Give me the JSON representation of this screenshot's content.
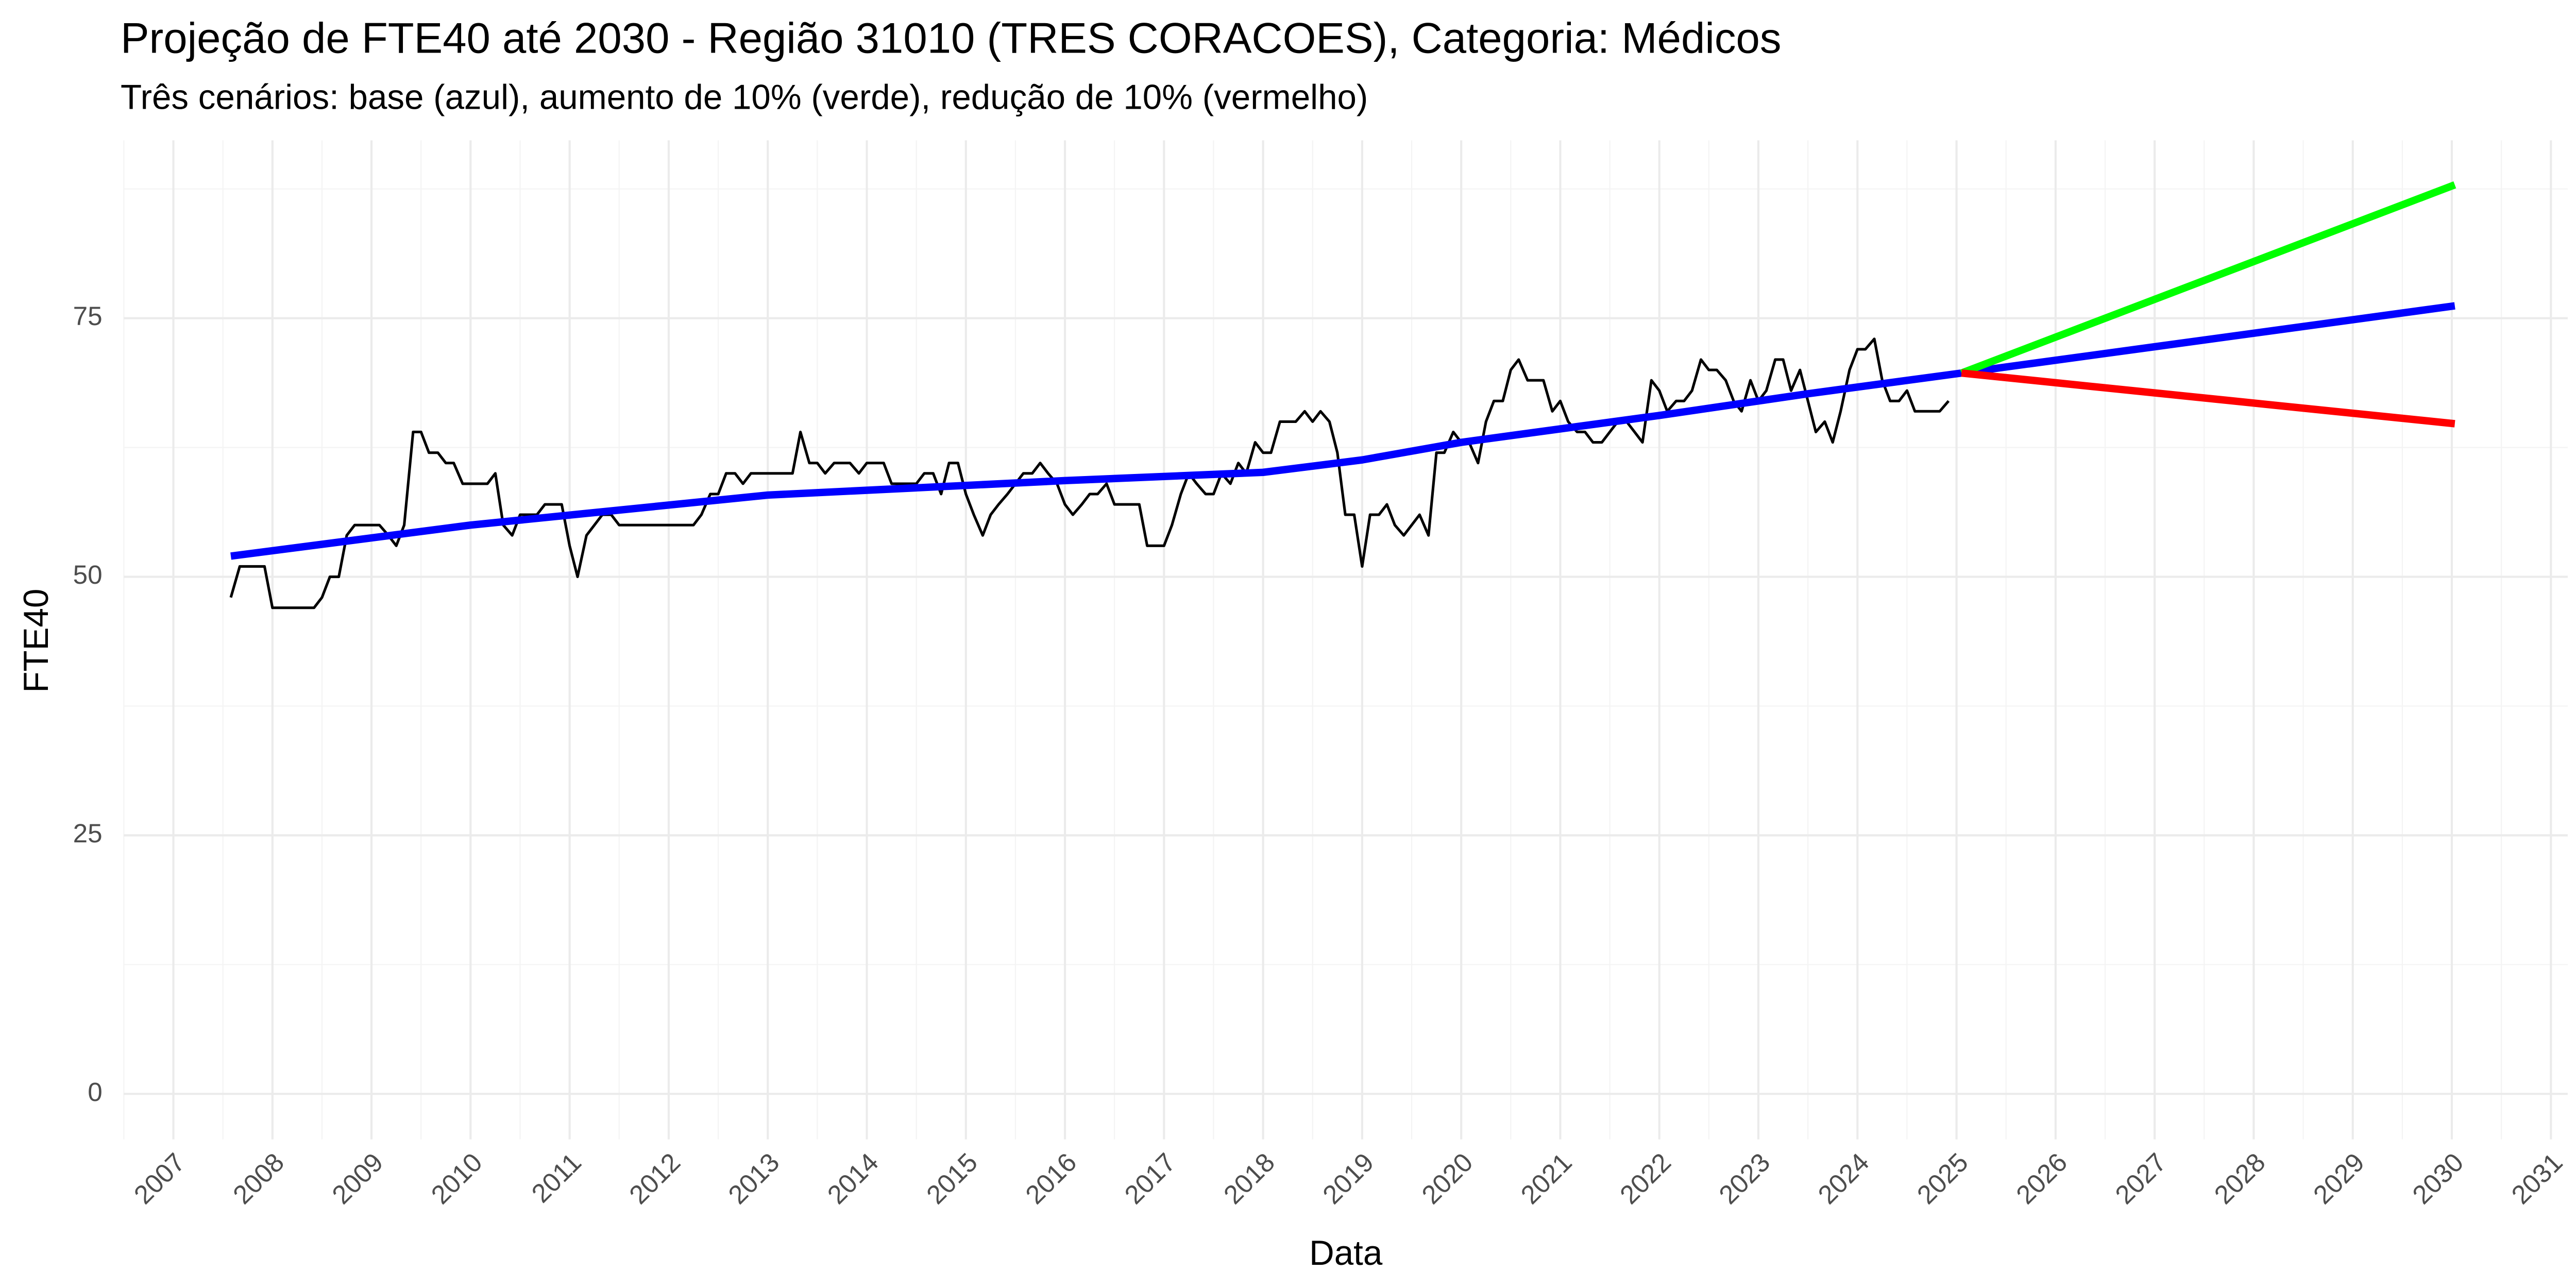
{
  "chart_data": {
    "type": "line",
    "title": "Projeção de FTE40 até 2030 - Região 31010 (TRES CORACOES), Categoria: Médicos",
    "subtitle": "Três cenários: base (azul), aumento de 10% (verde), redução de 10% (vermelho)",
    "xlabel": "Data",
    "ylabel": "FTE40",
    "xlim": [
      2006.5,
      2031.17
    ],
    "ylim": [
      -4.4,
      92.2
    ],
    "xticks": [
      2007,
      2008,
      2009,
      2010,
      2011,
      2012,
      2013,
      2014,
      2015,
      2016,
      2017,
      2018,
      2019,
      2020,
      2021,
      2022,
      2023,
      2024,
      2025,
      2026,
      2027,
      2028,
      2029,
      2030,
      2031
    ],
    "yticks": [
      0,
      25,
      50,
      75
    ],
    "grid": true,
    "series": [
      {
        "color": "#000000",
        "linewidth": 1.6,
        "x": [
          2007.58,
          2007.67,
          2007.75,
          2007.83,
          2007.92,
          2008,
          2008.08,
          2008.17,
          2008.25,
          2008.33,
          2008.42,
          2008.5,
          2008.58,
          2008.67,
          2008.75,
          2008.83,
          2008.92,
          2009,
          2009.08,
          2009.17,
          2009.25,
          2009.33,
          2009.42,
          2009.5,
          2009.58,
          2009.67,
          2009.75,
          2009.83,
          2009.92,
          2010,
          2010.08,
          2010.17,
          2010.25,
          2010.33,
          2010.42,
          2010.5,
          2010.58,
          2010.67,
          2010.75,
          2010.83,
          2010.92,
          2011,
          2011.08,
          2011.17,
          2011.25,
          2011.33,
          2011.42,
          2011.5,
          2011.58,
          2011.67,
          2011.75,
          2011.83,
          2011.92,
          2012,
          2012.08,
          2012.17,
          2012.25,
          2012.33,
          2012.42,
          2012.5,
          2012.58,
          2012.67,
          2012.75,
          2012.83,
          2012.92,
          2013,
          2013.08,
          2013.17,
          2013.25,
          2013.33,
          2013.42,
          2013.5,
          2013.58,
          2013.67,
          2013.75,
          2013.83,
          2013.92,
          2014,
          2014.08,
          2014.17,
          2014.25,
          2014.33,
          2014.42,
          2014.5,
          2014.58,
          2014.67,
          2014.75,
          2014.83,
          2014.92,
          2015,
          2015.08,
          2015.17,
          2015.25,
          2015.33,
          2015.42,
          2015.5,
          2015.58,
          2015.67,
          2015.75,
          2015.83,
          2015.92,
          2016,
          2016.08,
          2016.17,
          2016.25,
          2016.33,
          2016.42,
          2016.5,
          2016.58,
          2016.67,
          2016.75,
          2016.83,
          2016.92,
          2017,
          2017.08,
          2017.17,
          2017.25,
          2017.33,
          2017.42,
          2017.5,
          2017.58,
          2017.67,
          2017.75,
          2017.83,
          2017.92,
          2018,
          2018.08,
          2018.17,
          2018.25,
          2018.33,
          2018.42,
          2018.5,
          2018.58,
          2018.67,
          2018.75,
          2018.83,
          2018.92,
          2019,
          2019.08,
          2019.17,
          2019.25,
          2019.33,
          2019.42,
          2019.5,
          2019.58,
          2019.67,
          2019.75,
          2019.83,
          2019.92,
          2020,
          2020.08,
          2020.17,
          2020.25,
          2020.33,
          2020.42,
          2020.5,
          2020.58,
          2020.67,
          2020.75,
          2020.83,
          2020.92,
          2021,
          2021.08,
          2021.17,
          2021.25,
          2021.33,
          2021.42,
          2021.5,
          2021.58,
          2021.67,
          2021.75,
          2021.83,
          2021.92,
          2022,
          2022.08,
          2022.17,
          2022.25,
          2022.33,
          2022.42,
          2022.5,
          2022.58,
          2022.67,
          2022.75,
          2022.83,
          2022.92,
          2023,
          2023.08,
          2023.17,
          2023.25,
          2023.33,
          2023.42,
          2023.5,
          2023.58,
          2023.67,
          2023.75,
          2023.83,
          2023.92,
          2024,
          2024.08,
          2024.17,
          2024.25,
          2024.33,
          2024.42,
          2024.5,
          2024.58,
          2024.67,
          2024.75,
          2024.83,
          2024.92
        ],
        "values": [
          48,
          51,
          51,
          51,
          51,
          47,
          47,
          47,
          47,
          47,
          47,
          48,
          50,
          50,
          54,
          55,
          55,
          55,
          55,
          54,
          53,
          55,
          64,
          64,
          62,
          62,
          61,
          61,
          59,
          59,
          59,
          59,
          60,
          55,
          54,
          56,
          56,
          56,
          57,
          57,
          57,
          53,
          50,
          54,
          55,
          56,
          56,
          55,
          55,
          55,
          55,
          55,
          55,
          55,
          55,
          55,
          55,
          56,
          58,
          58,
          60,
          60,
          59,
          60,
          60,
          60,
          60,
          60,
          60,
          64,
          61,
          61,
          60,
          61,
          61,
          61,
          60,
          61,
          61,
          61,
          59,
          59,
          59,
          59,
          60,
          60,
          58,
          61,
          61,
          58,
          56,
          54,
          56,
          57,
          58,
          59,
          60,
          60,
          61,
          60,
          59,
          57,
          56,
          57,
          58,
          58,
          59,
          57,
          57,
          57,
          57,
          53,
          53,
          53,
          55,
          58,
          60,
          59,
          58,
          58,
          60,
          59,
          61,
          60,
          63,
          62,
          62,
          65,
          65,
          65,
          66,
          65,
          66,
          65,
          62,
          56,
          56,
          51,
          56,
          56,
          57,
          55,
          54,
          55,
          56,
          54,
          62,
          62,
          64,
          63,
          63,
          61,
          65,
          67,
          67,
          70,
          71,
          69,
          69,
          69,
          66,
          67,
          65,
          64,
          64,
          63,
          63,
          64,
          65,
          65,
          64,
          63,
          69,
          68,
          66,
          67,
          67,
          68,
          71,
          70,
          70,
          69,
          67,
          66,
          69,
          67,
          68,
          71,
          71,
          68,
          70,
          67,
          64,
          65,
          63,
          66,
          70,
          72,
          72,
          73,
          69,
          67,
          67,
          68,
          66,
          66,
          66,
          66,
          67
        ]
      },
      {
        "color": "#0000ff",
        "linewidth": 4.5,
        "x": [
          2007.58,
          2010,
          2013,
          2016,
          2018,
          2019,
          2020,
          2022,
          2023.5,
          2025.05,
          2030.03
        ],
        "values": [
          52,
          55,
          57.9,
          59.3,
          60.1,
          61.3,
          63,
          65.6,
          67.7,
          69.7,
          76.2
        ]
      },
      {
        "color": "#00ff00",
        "linewidth": 4.5,
        "x": [
          2025.05,
          2030.03
        ],
        "values": [
          69.7,
          87.9
        ]
      },
      {
        "color": "#ff0000",
        "linewidth": 4.5,
        "x": [
          2025.05,
          2030.03
        ],
        "values": [
          69.7,
          64.8
        ]
      }
    ]
  }
}
